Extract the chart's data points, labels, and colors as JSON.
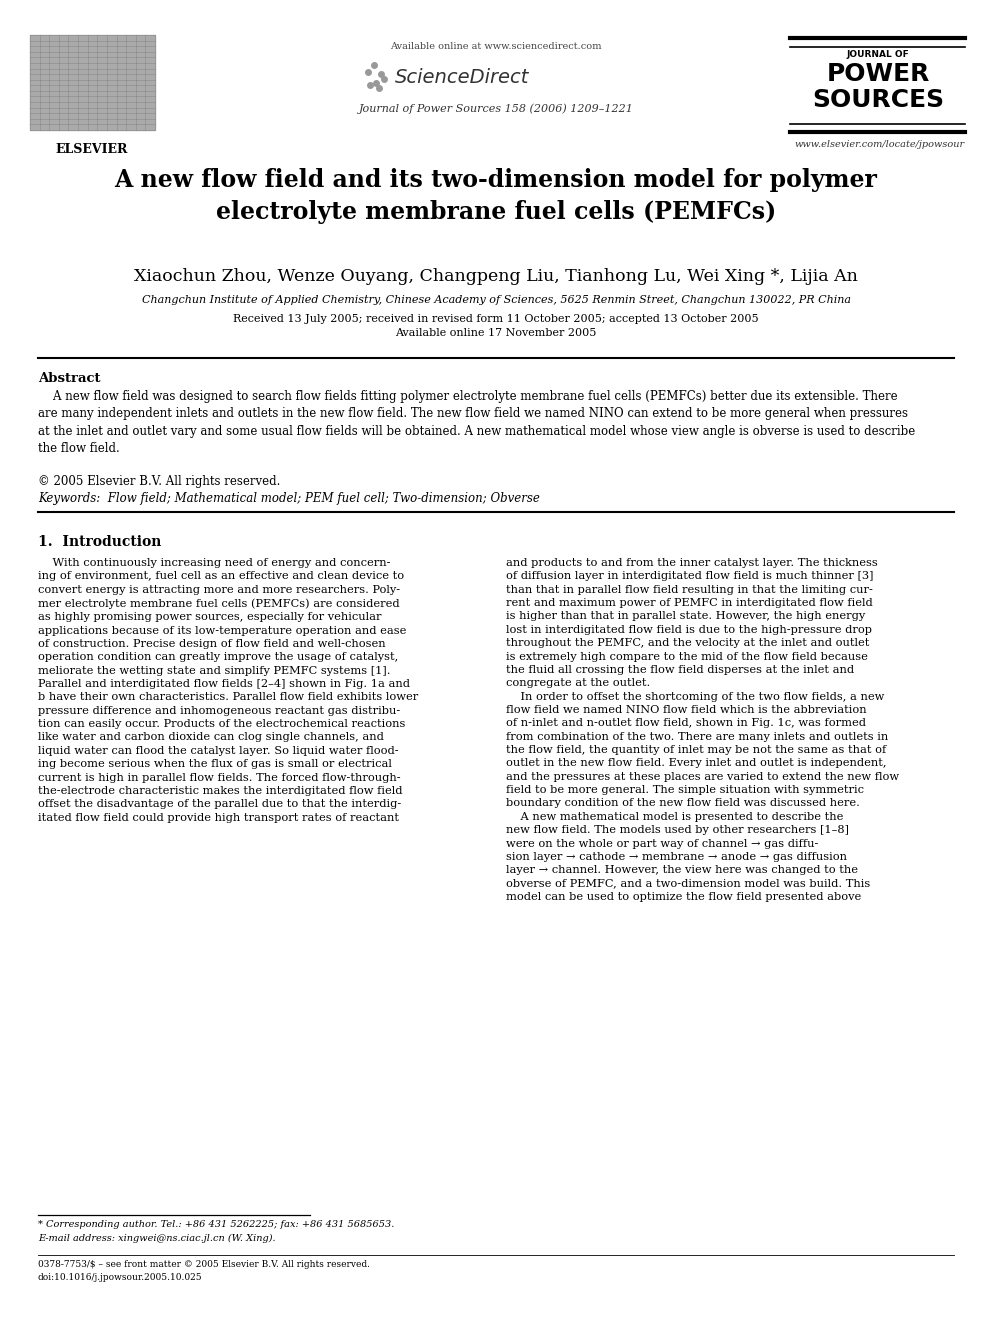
{
  "bg_color": "#ffffff",
  "page_width": 9.92,
  "page_height": 13.23,
  "dpi": 100,
  "header": {
    "elsevier_text": "ELSEVIER",
    "available_online": "Available online at www.sciencedirect.com",
    "sciencedirect": "ScienceDirect",
    "journal_name": "Journal of Power Sources 158 (2006) 1209–1221",
    "journal_logo_lines": [
      "JOURNAL OF",
      "POWER",
      "SOURCES"
    ],
    "website": "www.elsevier.com/locate/jpowsour"
  },
  "title": "A new flow field and its two-dimension model for polymer\nelectrolyte membrane fuel cells (PEMFCs)",
  "authors": "Xiaochun Zhou, Wenze Ouyang, Changpeng Liu, Tianhong Lu, Wei Xing *, Lijia An",
  "affiliation": "Changchun Institute of Applied Chemistry, Chinese Academy of Sciences, 5625 Renmin Street, Changchun 130022, PR China",
  "received": "Received 13 July 2005; received in revised form 11 October 2005; accepted 13 October 2005",
  "available": "Available online 17 November 2005",
  "abstract_title": "Abstract",
  "abstract_text": "    A new flow field was designed to search flow fields fitting polymer electrolyte membrane fuel cells (PEMFCs) better due its extensible. There\nare many independent inlets and outlets in the new flow field. The new flow field we named NINO can extend to be more general when pressures\nat the inlet and outlet vary and some usual flow fields will be obtained. A new mathematical model whose view angle is obverse is used to describe\nthe flow field.",
  "copyright": "© 2005 Elsevier B.V. All rights reserved.",
  "keywords": "Keywords:  Flow field; Mathematical model; PEM fuel cell; Two-dimension; Obverse",
  "section1_title": "1.  Introduction",
  "col1_para1": "    With continuously increasing need of energy and concern-\ning of environment, fuel cell as an effective and clean device to\nconvert energy is attracting more and more researchers. Poly-\nmer electrolyte membrane fuel cells (PEMFCs) are considered\nas highly promising power sources, especially for vehicular\napplications because of its low-temperature operation and ease\nof construction. Precise design of flow field and well-chosen\noperation condition can greatly improve the usage of catalyst,\nmeliorate the wetting state and simplify PEMFC systems [1].\nParallel and interdigitated flow fields [2–4] shown in Fig. 1a and\nb have their own characteristics. Parallel flow field exhibits lower\npressure difference and inhomogeneous reactant gas distribu-\ntion can easily occur. Products of the electrochemical reactions\nlike water and carbon dioxide can clog single channels, and\nliquid water can flood the catalyst layer. So liquid water flood-\ning become serious when the flux of gas is small or electrical\ncurrent is high in parallel flow fields. The forced flow-through-\nthe-electrode characteristic makes the interdigitated flow field\noffset the disadvantage of the parallel due to that the interdig-\nitated flow field could provide high transport rates of reactant",
  "col2_para1": "and products to and from the inner catalyst layer. The thickness\nof diffusion layer in interdigitated flow field is much thinner [3]\nthan that in parallel flow field resulting in that the limiting cur-\nrent and maximum power of PEMFC in interdigitated flow field\nis higher than that in parallel state. However, the high energy\nlost in interdigitated flow field is due to the high-pressure drop\nthroughout the PEMFC, and the velocity at the inlet and outlet\nis extremely high compare to the mid of the flow field because\nthe fluid all crossing the flow field disperses at the inlet and\ncongregate at the outlet.\n    In order to offset the shortcoming of the two flow fields, a new\nflow field we named NINO flow field which is the abbreviation\nof n-inlet and n-outlet flow field, shown in Fig. 1c, was formed\nfrom combination of the two. There are many inlets and outlets in\nthe flow field, the quantity of inlet may be not the same as that of\noutlet in the new flow field. Every inlet and outlet is independent,\nand the pressures at these places are varied to extend the new flow\nfield to be more general. The simple situation with symmetric\nboundary condition of the new flow field was discussed here.\n    A new mathematical model is presented to describe the\nnew flow field. The models used by other researchers [1–8]\nwere on the whole or part way of channel → gas diffu-\nsion layer → cathode → membrane → anode → gas diffusion\nlayer → channel. However, the view here was changed to the\nobverse of PEMFC, and a two-dimension model was build. This\nmodel can be used to optimize the flow field presented above",
  "footnote_star": "* Corresponding author. Tel.: +86 431 5262225; fax: +86 431 5685653.",
  "footnote_email": "E-mail address: xingwei@ns.ciac.jl.cn (W. Xing).",
  "footnote_issn": "0378-7753/$ – see front matter © 2005 Elsevier B.V. All rights reserved.",
  "footnote_doi": "doi:10.1016/j.jpowsour.2005.10.025"
}
